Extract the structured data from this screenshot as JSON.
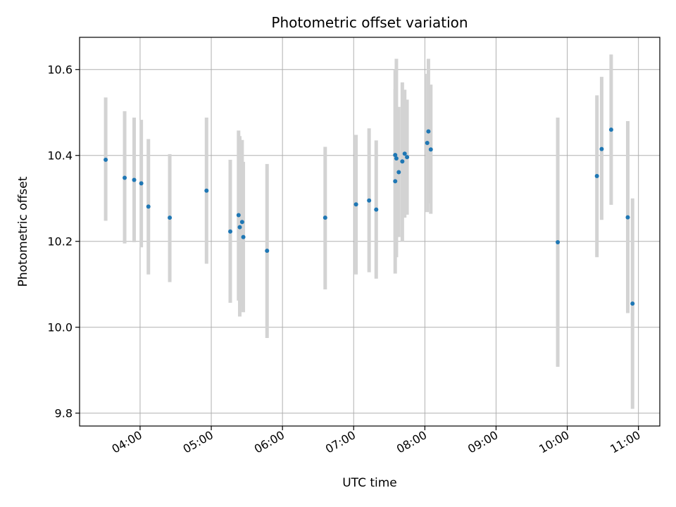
{
  "chart_data": {
    "type": "scatter",
    "title": "Photometric offset variation",
    "xlabel": "UTC time",
    "ylabel": "Photometric offset",
    "xlim": [
      "03:09",
      "11:18"
    ],
    "ylim": [
      9.77,
      10.675
    ],
    "grid": true,
    "x_tick_labels": [
      "04:00",
      "05:00",
      "06:00",
      "07:00",
      "08:00",
      "09:00",
      "10:00",
      "11:00"
    ],
    "y_tick_labels": [
      "9.8",
      "10.0",
      "10.2",
      "10.4",
      "10.6"
    ],
    "marker_color": "#1f77b4",
    "errorbar_color": "#d3d3d3",
    "points": [
      {
        "t": "03:31",
        "y": 10.39,
        "lo": 10.248,
        "hi": 10.535
      },
      {
        "t": "03:47",
        "y": 10.348,
        "lo": 10.195,
        "hi": 10.503
      },
      {
        "t": "03:55",
        "y": 10.343,
        "lo": 10.198,
        "hi": 10.488
      },
      {
        "t": "04:01",
        "y": 10.335,
        "lo": 10.186,
        "hi": 10.483
      },
      {
        "t": "04:07",
        "y": 10.281,
        "lo": 10.123,
        "hi": 10.438
      },
      {
        "t": "04:25",
        "y": 10.255,
        "lo": 10.105,
        "hi": 10.403
      },
      {
        "t": "04:56",
        "y": 10.318,
        "lo": 10.148,
        "hi": 10.488
      },
      {
        "t": "05:16",
        "y": 10.223,
        "lo": 10.057,
        "hi": 10.39
      },
      {
        "t": "05:23",
        "y": 10.261,
        "lo": 10.062,
        "hi": 10.458
      },
      {
        "t": "05:24",
        "y": 10.233,
        "lo": 10.025,
        "hi": 10.445
      },
      {
        "t": "05:26",
        "y": 10.245,
        "lo": 10.05,
        "hi": 10.436
      },
      {
        "t": "05:27",
        "y": 10.21,
        "lo": 10.035,
        "hi": 10.385
      },
      {
        "t": "05:47",
        "y": 10.178,
        "lo": 9.975,
        "hi": 10.38
      },
      {
        "t": "06:36",
        "y": 10.255,
        "lo": 10.088,
        "hi": 10.42
      },
      {
        "t": "07:02",
        "y": 10.286,
        "lo": 10.123,
        "hi": 10.448
      },
      {
        "t": "07:13",
        "y": 10.295,
        "lo": 10.128,
        "hi": 10.463
      },
      {
        "t": "07:19",
        "y": 10.274,
        "lo": 10.113,
        "hi": 10.435
      },
      {
        "t": "07:35",
        "y": 10.401,
        "lo": 10.2,
        "hi": 10.6
      },
      {
        "t": "07:35",
        "y": 10.34,
        "lo": 10.125,
        "hi": 10.555
      },
      {
        "t": "07:36",
        "y": 10.393,
        "lo": 10.163,
        "hi": 10.625
      },
      {
        "t": "07:38",
        "y": 10.361,
        "lo": 10.21,
        "hi": 10.513
      },
      {
        "t": "07:41",
        "y": 10.386,
        "lo": 10.2,
        "hi": 10.57
      },
      {
        "t": "07:43",
        "y": 10.404,
        "lo": 10.255,
        "hi": 10.553
      },
      {
        "t": "07:45",
        "y": 10.396,
        "lo": 10.262,
        "hi": 10.53
      },
      {
        "t": "08:02",
        "y": 10.429,
        "lo": 10.268,
        "hi": 10.59
      },
      {
        "t": "08:03",
        "y": 10.456,
        "lo": 10.288,
        "hi": 10.625
      },
      {
        "t": "08:05",
        "y": 10.414,
        "lo": 10.264,
        "hi": 10.565
      },
      {
        "t": "09:52",
        "y": 10.198,
        "lo": 9.908,
        "hi": 10.488
      },
      {
        "t": "10:25",
        "y": 10.352,
        "lo": 10.163,
        "hi": 10.54
      },
      {
        "t": "10:29",
        "y": 10.415,
        "lo": 10.25,
        "hi": 10.583
      },
      {
        "t": "10:37",
        "y": 10.46,
        "lo": 10.285,
        "hi": 10.635
      },
      {
        "t": "10:51",
        "y": 10.256,
        "lo": 10.033,
        "hi": 10.48
      },
      {
        "t": "10:55",
        "y": 10.055,
        "lo": 9.81,
        "hi": 10.3
      }
    ]
  }
}
